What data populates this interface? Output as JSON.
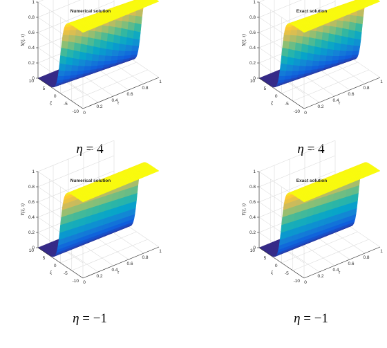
{
  "chart_data": [
    {
      "type": "surface",
      "title": "Numerical solution",
      "caption_symbol": "η",
      "caption_eq": "=",
      "caption_value": "4",
      "zlabel": "Y(ξ, τ)",
      "xlabel": "ξ",
      "ylabel": "τ",
      "xlim": [
        -10,
        10
      ],
      "ylim": [
        0,
        1
      ],
      "zlim": [
        0,
        1
      ],
      "xticks": [
        "10",
        "5",
        "0",
        "-5",
        "-10"
      ],
      "yticks": [
        "0",
        "0.2",
        "0.4",
        "0.6",
        "0.8",
        "1"
      ],
      "zticks": [
        "0",
        "0.2",
        "0.4",
        "0.6",
        "0.8",
        "1"
      ],
      "eta": 4,
      "colormap": "parula",
      "colormap_colors": [
        "#352a87",
        "#0f5cdd",
        "#1481d6",
        "#06a4ca",
        "#2eb7a4",
        "#87bf77",
        "#d1bb59",
        "#fec832",
        "#f9fb0e"
      ]
    },
    {
      "type": "surface",
      "title": "Exact solution",
      "caption_symbol": "η",
      "caption_eq": "=",
      "caption_value": "4",
      "zlabel": "Y(ξ, τ)",
      "xlabel": "ξ",
      "ylabel": "τ",
      "xlim": [
        -10,
        10
      ],
      "ylim": [
        0,
        1
      ],
      "zlim": [
        0,
        1
      ],
      "xticks": [
        "10",
        "5",
        "0",
        "-5",
        "-10"
      ],
      "yticks": [
        "0",
        "0.2",
        "0.4",
        "0.6",
        "0.8",
        "1"
      ],
      "zticks": [
        "0",
        "0.2",
        "0.4",
        "0.6",
        "0.8",
        "1"
      ],
      "eta": 4,
      "colormap": "parula",
      "colormap_colors": [
        "#352a87",
        "#0f5cdd",
        "#1481d6",
        "#06a4ca",
        "#2eb7a4",
        "#87bf77",
        "#d1bb59",
        "#fec832",
        "#f9fb0e"
      ]
    },
    {
      "type": "surface",
      "title": "Numerical solution",
      "caption_symbol": "η",
      "caption_eq": "=",
      "caption_value": "−1",
      "zlabel": "Y(ξ, τ)",
      "xlabel": "ξ",
      "ylabel": "τ",
      "xlim": [
        -10,
        10
      ],
      "ylim": [
        0,
        1
      ],
      "zlim": [
        0,
        1
      ],
      "xticks": [
        "10",
        "5",
        "0",
        "-5",
        "-10"
      ],
      "yticks": [
        "0",
        "0.2",
        "0.4",
        "0.6",
        "0.8",
        "1"
      ],
      "zticks": [
        "0",
        "0.2",
        "0.4",
        "0.6",
        "0.8",
        "1"
      ],
      "eta": -1,
      "colormap": "parula",
      "colormap_colors": [
        "#352a87",
        "#0f5cdd",
        "#1481d6",
        "#06a4ca",
        "#2eb7a4",
        "#87bf77",
        "#d1bb59",
        "#fec832",
        "#f9fb0e"
      ]
    },
    {
      "type": "surface",
      "title": "Exact solution",
      "caption_symbol": "η",
      "caption_eq": "=",
      "caption_value": "−1",
      "zlabel": "Y(ξ, τ)",
      "xlabel": "ξ",
      "ylabel": "τ",
      "xlim": [
        -10,
        10
      ],
      "ylim": [
        0,
        1
      ],
      "zlim": [
        0,
        1
      ],
      "xticks": [
        "10",
        "5",
        "0",
        "-5",
        "-10"
      ],
      "yticks": [
        "0",
        "0.2",
        "0.4",
        "0.6",
        "0.8",
        "1"
      ],
      "zticks": [
        "0",
        "0.2",
        "0.4",
        "0.6",
        "0.8",
        "1"
      ],
      "eta": -1,
      "colormap": "parula",
      "colormap_colors": [
        "#352a87",
        "#0f5cdd",
        "#1481d6",
        "#06a4ca",
        "#2eb7a4",
        "#87bf77",
        "#d1bb59",
        "#fec832",
        "#f9fb0e"
      ]
    }
  ]
}
